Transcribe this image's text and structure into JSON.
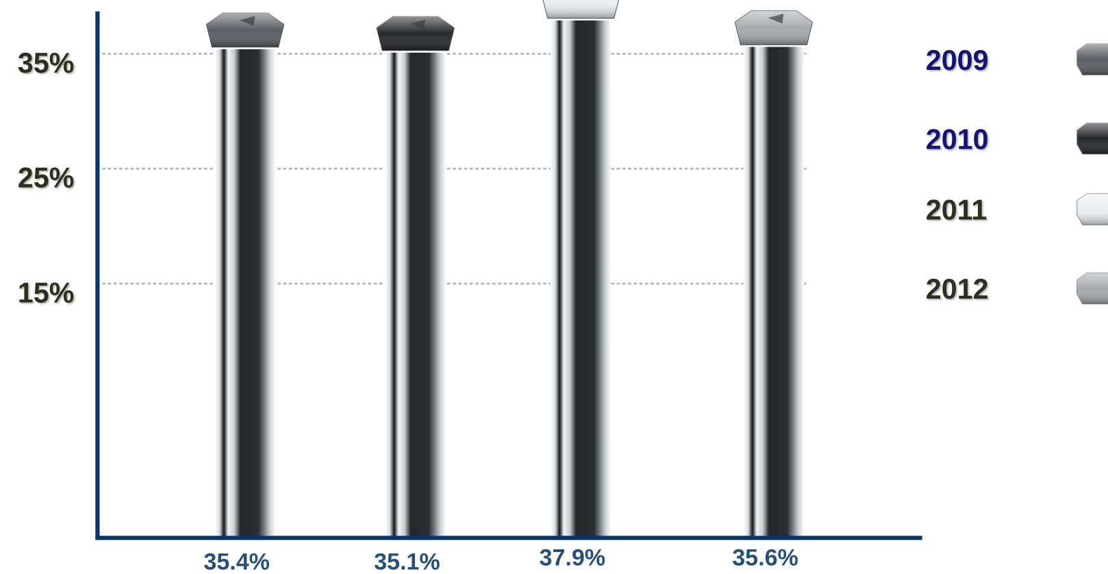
{
  "chart_data": {
    "type": "bar",
    "categories": [
      "2009",
      "2010",
      "2011",
      "2012"
    ],
    "values": [
      35.4,
      35.1,
      37.9,
      35.6
    ],
    "value_labels": [
      "35.4%",
      "35.1%",
      "37.9%",
      "35.6%"
    ],
    "colors": [
      "#5b6067",
      "#25282c",
      "#e9eef3",
      "#a7abb0"
    ],
    "legend_text_colors": [
      "#14136e",
      "#14136e",
      "#2e2e1e",
      "#2e2e1e"
    ],
    "ylim": [
      -7,
      39
    ],
    "yticks": [
      {
        "value": 15,
        "label": "15%"
      },
      {
        "value": 25,
        "label": "25%"
      },
      {
        "value": 35,
        "label": "35%"
      }
    ],
    "grid": true,
    "legend": "right"
  }
}
